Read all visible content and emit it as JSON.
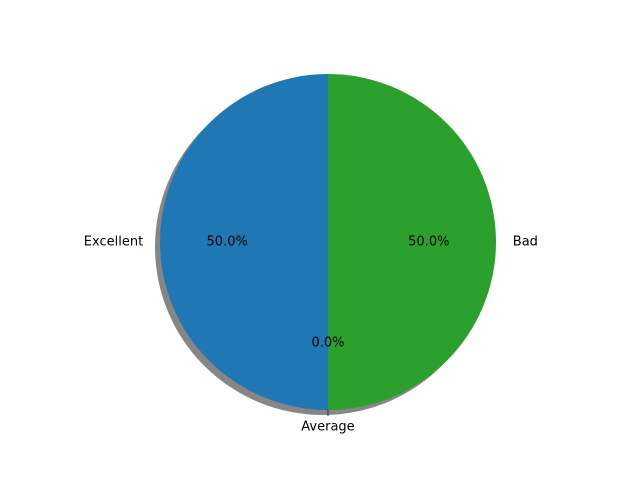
{
  "chart_data": {
    "type": "pie",
    "title": "",
    "start_angle_deg": 90,
    "direction": "counterclockwise",
    "shadow": true,
    "slices": [
      {
        "label": "Excellent",
        "value": 50,
        "pct_label": "50.0%",
        "color": "#1f77b4"
      },
      {
        "label": "Average",
        "value": 0,
        "pct_label": "0.0%",
        "color": "#ff7f0e"
      },
      {
        "label": "Bad",
        "value": 50,
        "pct_label": "50.0%",
        "color": "#2ca02c"
      }
    ]
  }
}
